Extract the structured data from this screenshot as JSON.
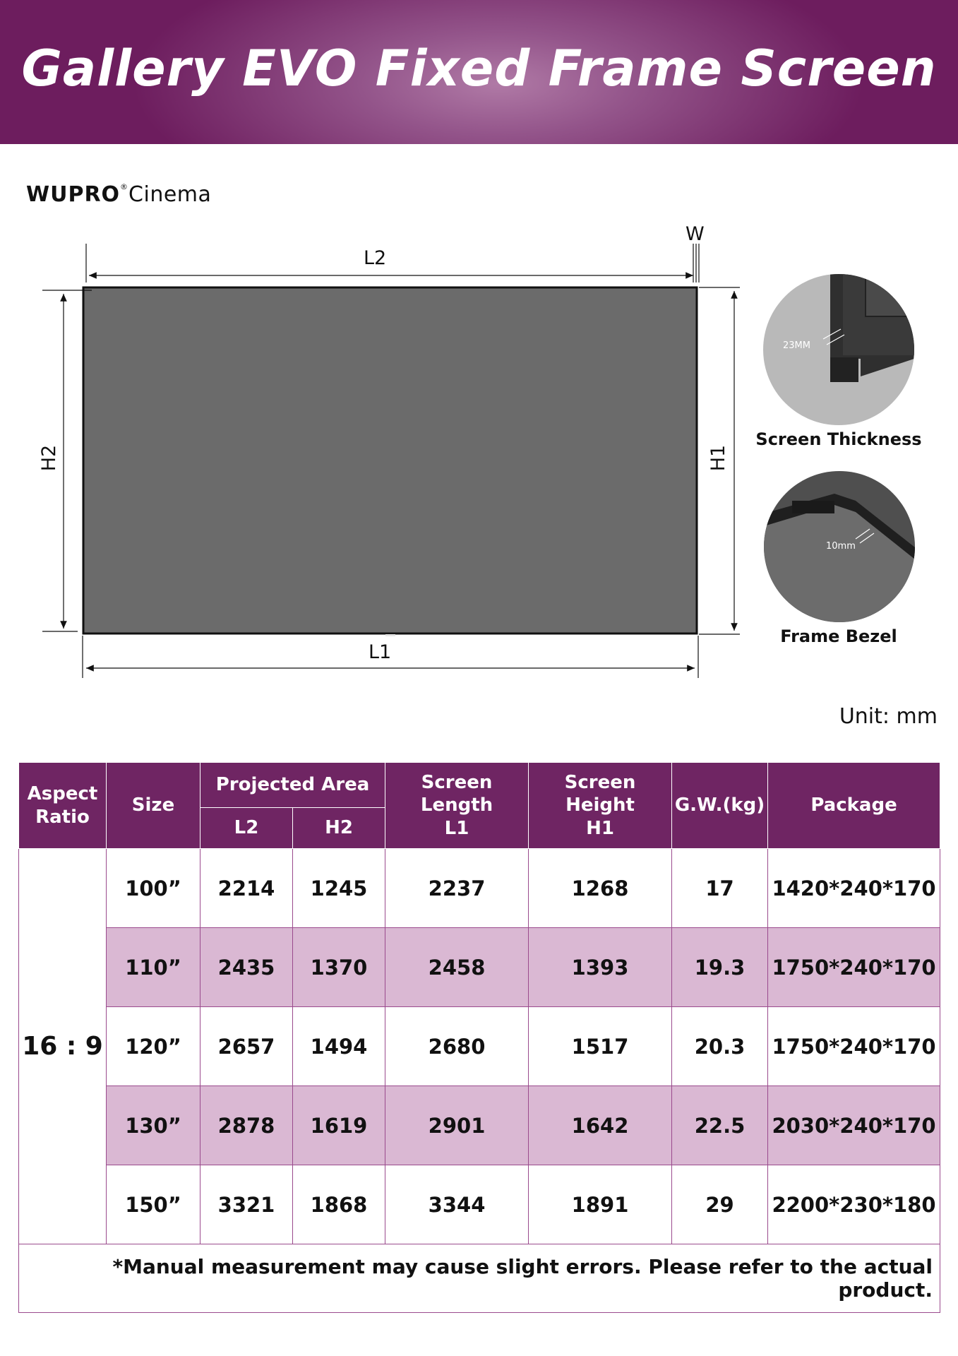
{
  "title": "Gallery EVO Fixed Frame Screen",
  "logo": {
    "brand": "WUPRO",
    "reg": "®",
    "sub": "Cinema"
  },
  "diagram": {
    "w": "W",
    "l2": "L2",
    "l1": "L1",
    "h1": "H1",
    "h2": "H2"
  },
  "details": [
    {
      "measure": "23MM",
      "caption": "Screen Thickness"
    },
    {
      "measure": "10mm",
      "caption": "Frame Bezel"
    }
  ],
  "unit": "Unit: mm",
  "table": {
    "headers": {
      "aspect_ratio": "Aspect Ratio",
      "size": "Size",
      "projected_area": "Projected Area",
      "l2": "L2",
      "h2": "H2",
      "screen_length": "Screen Length",
      "screen_length_sub": "L1",
      "screen_height": "Screen Height",
      "screen_height_sub": "H1",
      "gw": "G.W.(kg)",
      "package": "Package"
    },
    "aspect_ratio": "16 : 9",
    "rows": [
      {
        "size": "100”",
        "l2": "2214",
        "h2": "1245",
        "l1": "2237",
        "h1": "1268",
        "gw": "17",
        "package": "1420*240*170"
      },
      {
        "size": "110”",
        "l2": "2435",
        "h2": "1370",
        "l1": "2458",
        "h1": "1393",
        "gw": "19.3",
        "package": "1750*240*170"
      },
      {
        "size": "120”",
        "l2": "2657",
        "h2": "1494",
        "l1": "2680",
        "h1": "1517",
        "gw": "20.3",
        "package": "1750*240*170"
      },
      {
        "size": "130”",
        "l2": "2878",
        "h2": "1619",
        "l1": "2901",
        "h1": "1642",
        "gw": "22.5",
        "package": "2030*240*170"
      },
      {
        "size": "150”",
        "l2": "3321",
        "h2": "1868",
        "l1": "3344",
        "h1": "1891",
        "gw": "29",
        "package": "2200*230*180"
      }
    ],
    "note": "*Manual measurement may cause slight errors. Please refer to the actual product."
  },
  "colors": {
    "banner": "#6d1d5e",
    "header": "#6f2563",
    "alt_row": "#dab8d3",
    "screen": "#6b6b6b"
  },
  "icons": [
    "screen-thickness-photo",
    "frame-bezel-photo",
    "dimension-arrows"
  ]
}
